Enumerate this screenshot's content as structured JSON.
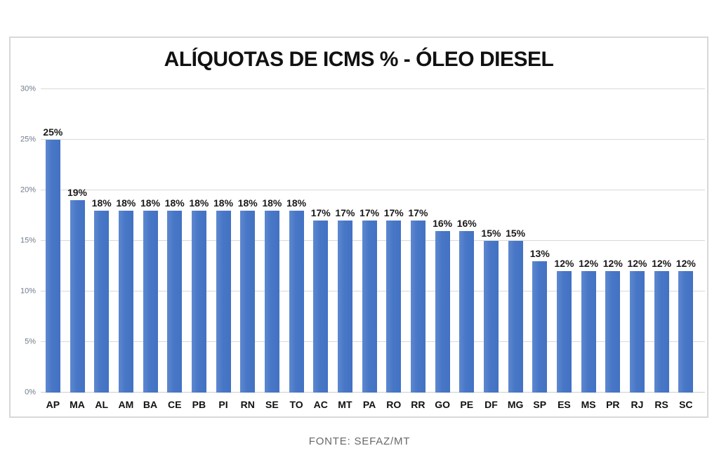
{
  "chart_data": {
    "type": "bar",
    "title": "ALÍQUOTAS DE ICMS % - ÓLEO DIESEL",
    "categories": [
      "AP",
      "MA",
      "AL",
      "AM",
      "BA",
      "CE",
      "PB",
      "PI",
      "RN",
      "SE",
      "TO",
      "AC",
      "MT",
      "PA",
      "RO",
      "RR",
      "GO",
      "PE",
      "DF",
      "MG",
      "SP",
      "ES",
      "MS",
      "PR",
      "RJ",
      "RS",
      "SC"
    ],
    "values": [
      25,
      19,
      18,
      18,
      18,
      18,
      18,
      18,
      18,
      18,
      18,
      17,
      17,
      17,
      17,
      17,
      16,
      16,
      15,
      15,
      13,
      12,
      12,
      12,
      12,
      12,
      12
    ],
    "value_labels": [
      "25%",
      "19%",
      "18%",
      "18%",
      "18%",
      "18%",
      "18%",
      "18%",
      "18%",
      "18%",
      "18%",
      "17%",
      "17%",
      "17%",
      "17%",
      "17%",
      "16%",
      "16%",
      "15%",
      "15%",
      "13%",
      "12%",
      "12%",
      "12%",
      "12%",
      "12%",
      "12%"
    ],
    "xlabel": "",
    "ylabel": "",
    "ylim": [
      0,
      30
    ],
    "yticks": [
      0,
      5,
      10,
      15,
      20,
      25,
      30
    ],
    "ytick_labels": [
      "0%",
      "5%",
      "10%",
      "15%",
      "20%",
      "25%",
      "30%"
    ],
    "grid": true,
    "legend": "none",
    "bar_color": "#4472C4"
  },
  "footer": {
    "source": "FONTE: SEFAZ/MT"
  },
  "colors": {
    "bar": "#4472C4",
    "gridline": "#D9D9D9",
    "frame_border": "#D8D8D8",
    "axis_label": "#6F7B8A",
    "title_text": "#111111",
    "source_text": "#686868"
  }
}
